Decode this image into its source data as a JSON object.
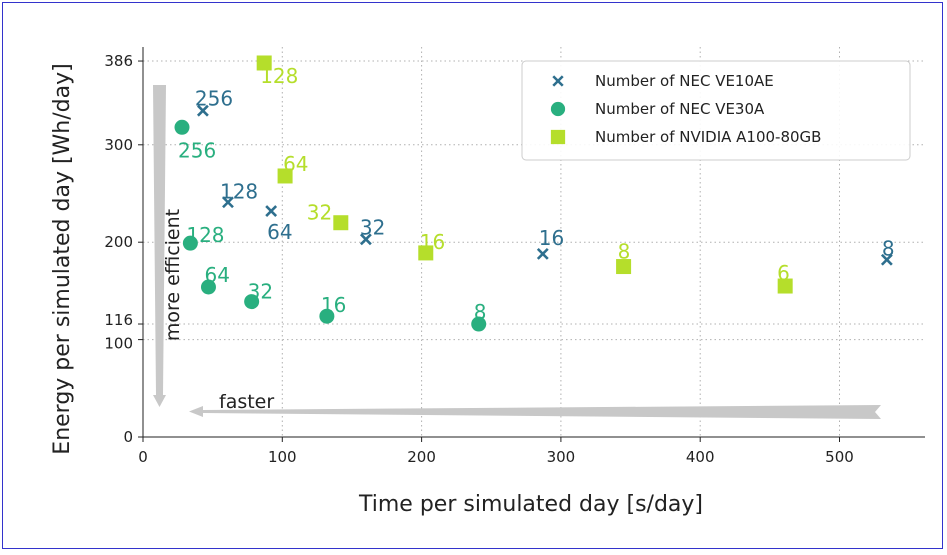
{
  "chart_data": {
    "type": "scatter",
    "xlabel": "Time per simulated day [s/day]",
    "ylabel": "Energy per simulated day [Wh/day]",
    "xlim": [
      0,
      560
    ],
    "ylim": [
      0,
      400
    ],
    "xticks": [
      0,
      100,
      200,
      300,
      400,
      500
    ],
    "yticks": [
      0,
      100,
      116,
      200,
      300,
      386
    ],
    "grid": true,
    "legend_position": "top-right",
    "series": [
      {
        "name": "Number of NEC VE10AE",
        "marker": "x",
        "color": "#2e6f8e",
        "points": [
          {
            "x": 43,
            "y": 335,
            "label": "256"
          },
          {
            "x": 61,
            "y": 241,
            "label": "128"
          },
          {
            "x": 92,
            "y": 232,
            "label": "64"
          },
          {
            "x": 160,
            "y": 203,
            "label": "32"
          },
          {
            "x": 287,
            "y": 188,
            "label": "16"
          },
          {
            "x": 534,
            "y": 182,
            "label": "8"
          }
        ]
      },
      {
        "name": "Number of NEC VE30A",
        "marker": "circle",
        "color": "#29af7f",
        "points": [
          {
            "x": 28,
            "y": 318,
            "label": "256"
          },
          {
            "x": 34,
            "y": 199,
            "label": "128"
          },
          {
            "x": 47,
            "y": 154,
            "label": "64"
          },
          {
            "x": 78,
            "y": 139,
            "label": "32"
          },
          {
            "x": 132,
            "y": 124,
            "label": "16"
          },
          {
            "x": 241,
            "y": 116,
            "label": "8"
          }
        ]
      },
      {
        "name": "Number of NVIDIA A100-80GB",
        "marker": "square",
        "color": "#b5de2b",
        "points": [
          {
            "x": 87,
            "y": 384,
            "label": "128"
          },
          {
            "x": 102,
            "y": 268,
            "label": "64"
          },
          {
            "x": 142,
            "y": 220,
            "label": "32"
          },
          {
            "x": 203,
            "y": 189,
            "label": "16"
          },
          {
            "x": 345,
            "y": 175,
            "label": "8"
          },
          {
            "x": 461,
            "y": 155,
            "label": "6"
          }
        ]
      }
    ],
    "annotations": {
      "vertical": "more efficient",
      "horizontal": "faster"
    }
  }
}
